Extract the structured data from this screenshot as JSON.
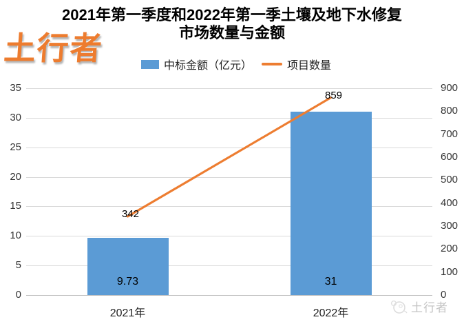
{
  "watermarks": {
    "top_left": "土行者",
    "bottom_right": "土行者"
  },
  "title": {
    "line1": "2021年第一季度和2022年第一季土壤及地下水修复",
    "line2": "市场数量与金额"
  },
  "legend": {
    "bar_label": "中标金额（亿元）",
    "line_label": "项目数量"
  },
  "chart_data": {
    "type": "combo bar+line",
    "categories": [
      "2021年",
      "2022年"
    ],
    "series": [
      {
        "name": "中标金额（亿元）",
        "type": "bar",
        "axis": "left",
        "values": [
          9.73,
          31
        ],
        "labels": [
          "9.73",
          "31"
        ],
        "color": "#5B9BD5"
      },
      {
        "name": "项目数量",
        "type": "line",
        "axis": "right",
        "values": [
          342,
          859
        ],
        "labels": [
          "342",
          "859"
        ],
        "color": "#ED7D31"
      }
    ],
    "left_axis": {
      "min": 0,
      "max": 35,
      "step": 5,
      "ticks": [
        35,
        30,
        25,
        20,
        15,
        10,
        5,
        0
      ]
    },
    "right_axis": {
      "min": 0,
      "max": 900,
      "step": 100,
      "ticks": [
        900,
        800,
        700,
        600,
        500,
        400,
        300,
        200,
        100,
        0
      ]
    },
    "grid": true,
    "legend_position": "top"
  },
  "colors": {
    "bar": "#5B9BD5",
    "line": "#ED7D31",
    "grid": "#D9D9D9",
    "axis_line": "#BFBFBF",
    "tick_text": "#333333",
    "watermark_orange": "#ED7C2F",
    "watermark_gray": "#C4C4C4"
  }
}
